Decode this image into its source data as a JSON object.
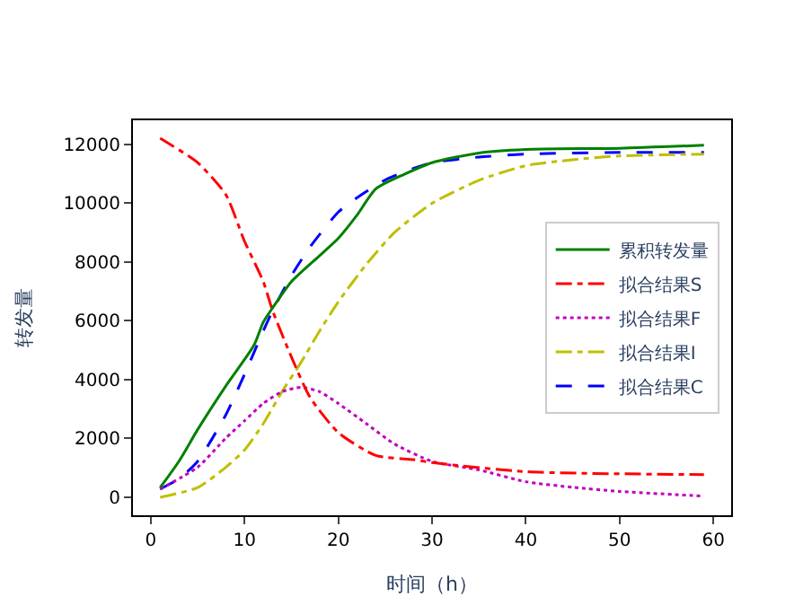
{
  "chart_data": {
    "type": "line",
    "xlabel": "时间（h）",
    "ylabel": "转发量",
    "xlim": [
      -1.9,
      61.9
    ],
    "ylim": [
      -610,
      12810
    ],
    "xticks": [
      0,
      10,
      20,
      30,
      40,
      50,
      60
    ],
    "yticks": [
      0,
      2000,
      4000,
      6000,
      8000,
      10000,
      12000
    ],
    "legend": "right",
    "marker": "none",
    "series": [
      {
        "name": "累积转发量",
        "color": "#008000",
        "line_style": "solid",
        "x": [
          1,
          3,
          5,
          8,
          11,
          12,
          13,
          15,
          18,
          20,
          22,
          24,
          27,
          30,
          35,
          40,
          50,
          59
        ],
        "values": [
          330,
          1220,
          2300,
          3780,
          5160,
          5950,
          6440,
          7330,
          8210,
          8800,
          9590,
          10480,
          10970,
          11370,
          11700,
          11820,
          11860,
          11960
        ]
      },
      {
        "name": "拟合结果S",
        "color": "#ff0000",
        "line_style": "dashdot",
        "x": [
          1,
          5,
          8,
          10,
          12,
          13,
          15,
          17,
          20,
          24,
          28,
          30,
          40,
          59
        ],
        "values": [
          12200,
          11370,
          10290,
          8700,
          7330,
          6340,
          4770,
          3390,
          2200,
          1420,
          1280,
          1180,
          870,
          770
        ]
      },
      {
        "name": "拟合结果F",
        "color": "#bf00bf",
        "line_style": "dotted",
        "x": [
          1,
          5,
          8,
          10,
          12,
          14,
          16,
          18,
          20,
          23,
          26,
          30,
          35,
          40,
          45,
          50,
          59
        ],
        "values": [
          280,
          1020,
          2010,
          2600,
          3190,
          3590,
          3740,
          3590,
          3190,
          2500,
          1810,
          1220,
          930,
          530,
          340,
          200,
          40
        ]
      },
      {
        "name": "拟合结果I",
        "color": "#bfbf00",
        "line_style": "dashdot",
        "x": [
          1,
          5,
          8,
          10,
          12,
          14,
          16,
          18,
          20,
          23,
          26,
          30,
          35,
          40,
          45,
          50,
          59
        ],
        "values": [
          0,
          330,
          1020,
          1610,
          2500,
          3590,
          4570,
          5650,
          6640,
          7920,
          9000,
          9990,
          10770,
          11270,
          11470,
          11600,
          11660
        ]
      },
      {
        "name": "拟合结果C",
        "color": "#0000ff",
        "line_style": "dashed",
        "x": [
          1,
          3,
          5,
          8,
          10,
          12,
          13,
          15,
          17,
          20,
          22,
          25,
          28,
          30,
          35,
          40,
          50,
          59
        ],
        "values": [
          280,
          630,
          1220,
          2800,
          4180,
          5650,
          6340,
          7530,
          8510,
          9690,
          10180,
          10780,
          11170,
          11370,
          11560,
          11660,
          11720,
          11720
        ]
      }
    ]
  }
}
